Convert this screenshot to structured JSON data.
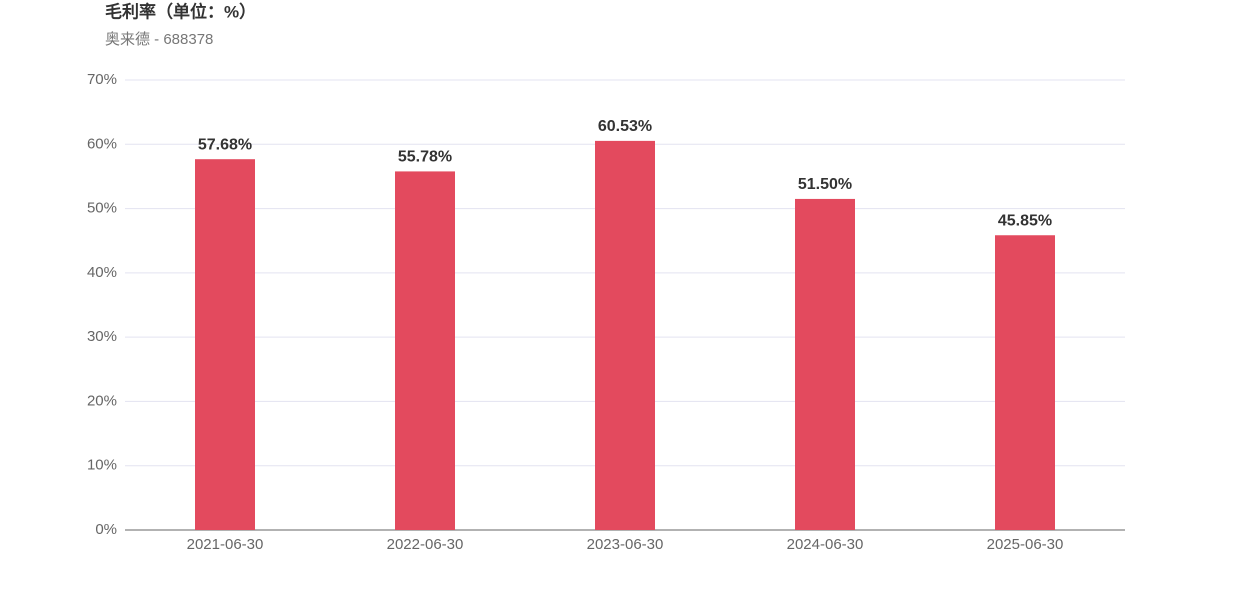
{
  "chart_data": {
    "type": "bar",
    "title": "毛利率（单位：%）",
    "subtitle": "奥来德 - 688378",
    "categories": [
      "2021-06-30",
      "2022-06-30",
      "2023-06-30",
      "2024-06-30",
      "2025-06-30"
    ],
    "values": [
      57.68,
      55.78,
      60.53,
      51.5,
      45.85
    ],
    "value_labels": [
      "57.68%",
      "55.78%",
      "60.53%",
      "51.50%",
      "45.85%"
    ],
    "color": "#e34a5e",
    "ylim": [
      0,
      70
    ],
    "yticks": [
      {
        "value": 0,
        "label": "0%"
      },
      {
        "value": 10,
        "label": "10%"
      },
      {
        "value": 20,
        "label": "20%"
      },
      {
        "value": 30,
        "label": "30%"
      },
      {
        "value": 40,
        "label": "40%"
      },
      {
        "value": 50,
        "label": "50%"
      },
      {
        "value": 60,
        "label": "60%"
      },
      {
        "value": 70,
        "label": "70%"
      }
    ],
    "grid": true
  }
}
